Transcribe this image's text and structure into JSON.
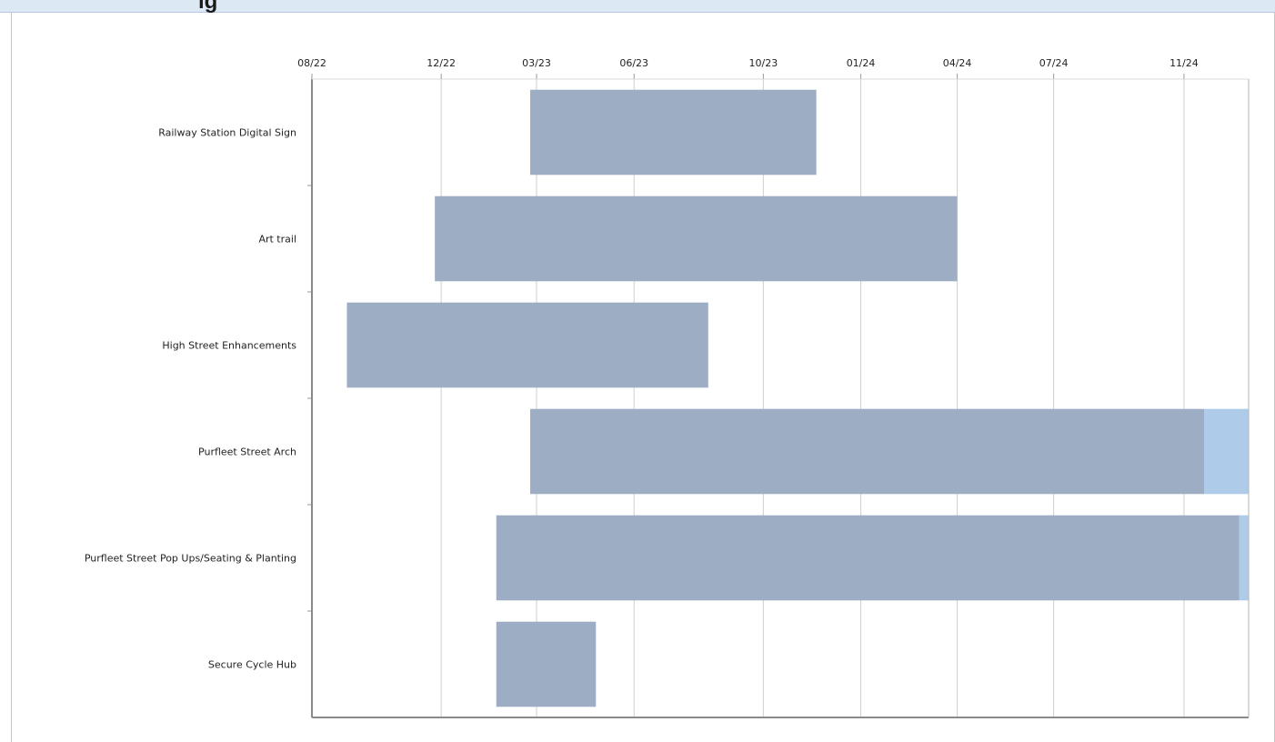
{
  "page": {
    "title": "ig"
  },
  "chart_data": {
    "type": "bar",
    "orientation": "horizontal-gantt",
    "title": "",
    "xlabel": "",
    "ylabel": "",
    "x_ticks": [
      "08/22",
      "12/22",
      "03/23",
      "06/23",
      "10/23",
      "01/24",
      "04/24",
      "07/24",
      "11/24"
    ],
    "xlim": [
      "2022-08-01",
      "2025-01-01"
    ],
    "grid": true,
    "colors": {
      "complete": "#9dadc4",
      "remaining": "#aecbea"
    },
    "tasks": [
      {
        "name": "Railway Station Digital Sign",
        "start": "2023-02-23",
        "end": "2023-11-20",
        "complete_until": "2023-11-20"
      },
      {
        "name": "Art trail",
        "start": "2022-11-25",
        "end": "2024-04-01",
        "complete_until": "2024-04-01"
      },
      {
        "name": "High Street Enhancements",
        "start": "2022-09-03",
        "end": "2023-08-10",
        "complete_until": "2023-08-10"
      },
      {
        "name": "Purfleet Street Arch",
        "start": "2023-02-23",
        "end": "2025-01-01",
        "complete_until": "2024-11-20"
      },
      {
        "name": "Purfleet Street Pop Ups/Seating & Planting",
        "start": "2023-01-22",
        "end": "2025-01-01",
        "complete_until": "2024-12-23"
      },
      {
        "name": "Secure Cycle Hub",
        "start": "2023-01-22",
        "end": "2023-04-26",
        "complete_until": "2023-04-26"
      }
    ]
  }
}
